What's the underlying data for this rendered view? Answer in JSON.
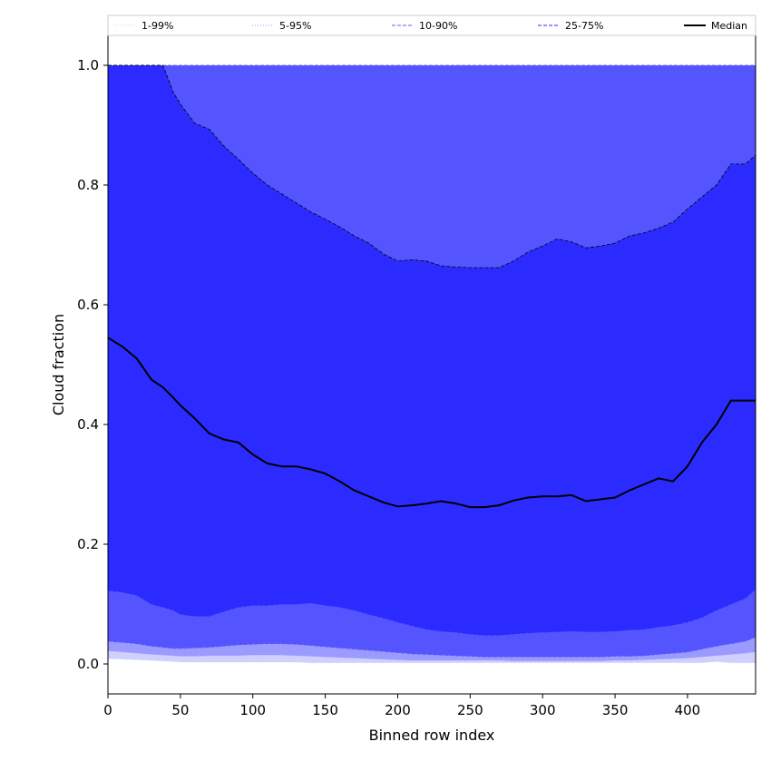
{
  "chart_data": {
    "type": "area",
    "title": "",
    "xlabel": "Binned row index",
    "ylabel": "Cloud fraction",
    "xlim": [
      0,
      447
    ],
    "ylim": [
      -0.05,
      1.05
    ],
    "xticks": [
      0,
      50,
      100,
      150,
      200,
      250,
      300,
      350,
      400
    ],
    "yticks": [
      0.0,
      0.2,
      0.4,
      0.6,
      0.8,
      1.0
    ],
    "xtick_labels": [
      "0",
      "50",
      "100",
      "150",
      "200",
      "250",
      "300",
      "350",
      "400"
    ],
    "ytick_labels": [
      "0.0",
      "0.2",
      "0.4",
      "0.6",
      "0.8",
      "1.0"
    ],
    "legend_position": "top, outside plot, single row",
    "x": [
      0,
      10,
      20,
      30,
      38,
      45,
      50,
      60,
      70,
      80,
      90,
      100,
      110,
      120,
      130,
      140,
      150,
      160,
      170,
      180,
      190,
      200,
      210,
      220,
      230,
      240,
      250,
      260,
      270,
      280,
      290,
      300,
      310,
      320,
      330,
      340,
      350,
      360,
      370,
      380,
      390,
      400,
      410,
      420,
      430,
      440,
      447
    ],
    "bands": [
      {
        "name": "1-99%",
        "color": "#d0d0ff",
        "line_style": "dotted",
        "lower": [
          0.009,
          0.008,
          0.007,
          0.006,
          0.005,
          0.004,
          0.003,
          0.003,
          0.003,
          0.003,
          0.003,
          0.003,
          0.003,
          0.003,
          0.003,
          0.002,
          0.002,
          0.002,
          0.002,
          0.002,
          0.002,
          0.002,
          0.002,
          0.002,
          0.002,
          0.002,
          0.002,
          0.002,
          0.002,
          0.002,
          0.002,
          0.002,
          0.002,
          0.002,
          0.002,
          0.002,
          0.002,
          0.002,
          0.002,
          0.002,
          0.002,
          0.002,
          0.002,
          0.004,
          0.002,
          0.002,
          0.002
        ],
        "upper": [
          1.0,
          1.0,
          1.0,
          1.0,
          1.0,
          1.0,
          1.0,
          1.0,
          1.0,
          1.0,
          1.0,
          1.0,
          1.0,
          1.0,
          1.0,
          1.0,
          1.0,
          1.0,
          1.0,
          1.0,
          1.0,
          1.0,
          1.0,
          1.0,
          1.0,
          1.0,
          1.0,
          1.0,
          1.0,
          1.0,
          1.0,
          1.0,
          1.0,
          1.0,
          1.0,
          1.0,
          1.0,
          1.0,
          1.0,
          1.0,
          1.0,
          1.0,
          1.0,
          1.0,
          1.0,
          1.0,
          1.0
        ]
      },
      {
        "name": "5-95%",
        "color": "#9a9aff",
        "line_style": "dotted",
        "lower": [
          0.022,
          0.02,
          0.018,
          0.016,
          0.015,
          0.014,
          0.013,
          0.013,
          0.014,
          0.014,
          0.014,
          0.015,
          0.015,
          0.015,
          0.014,
          0.013,
          0.012,
          0.011,
          0.01,
          0.009,
          0.008,
          0.007,
          0.006,
          0.006,
          0.006,
          0.006,
          0.006,
          0.006,
          0.006,
          0.005,
          0.005,
          0.005,
          0.005,
          0.005,
          0.005,
          0.005,
          0.006,
          0.006,
          0.007,
          0.008,
          0.009,
          0.01,
          0.012,
          0.014,
          0.016,
          0.018,
          0.02
        ],
        "upper": [
          1.0,
          1.0,
          1.0,
          1.0,
          1.0,
          1.0,
          1.0,
          1.0,
          1.0,
          1.0,
          1.0,
          1.0,
          1.0,
          1.0,
          1.0,
          1.0,
          1.0,
          1.0,
          1.0,
          1.0,
          1.0,
          1.0,
          1.0,
          1.0,
          1.0,
          1.0,
          1.0,
          1.0,
          1.0,
          1.0,
          1.0,
          1.0,
          1.0,
          1.0,
          1.0,
          1.0,
          1.0,
          1.0,
          1.0,
          1.0,
          1.0,
          1.0,
          1.0,
          1.0,
          1.0,
          1.0,
          1.0
        ]
      },
      {
        "name": "10-90%",
        "color": "#5555ff",
        "line_style": "dashed",
        "lower": [
          0.038,
          0.036,
          0.034,
          0.03,
          0.028,
          0.026,
          0.026,
          0.027,
          0.028,
          0.03,
          0.032,
          0.033,
          0.034,
          0.034,
          0.033,
          0.031,
          0.029,
          0.027,
          0.025,
          0.023,
          0.021,
          0.019,
          0.017,
          0.016,
          0.015,
          0.014,
          0.013,
          0.012,
          0.012,
          0.012,
          0.012,
          0.012,
          0.012,
          0.012,
          0.012,
          0.012,
          0.013,
          0.013,
          0.014,
          0.016,
          0.018,
          0.02,
          0.025,
          0.03,
          0.034,
          0.038,
          0.045
        ],
        "upper": [
          1.0,
          1.0,
          1.0,
          1.0,
          1.0,
          1.0,
          1.0,
          1.0,
          1.0,
          1.0,
          1.0,
          1.0,
          1.0,
          1.0,
          1.0,
          1.0,
          1.0,
          1.0,
          1.0,
          1.0,
          1.0,
          1.0,
          1.0,
          1.0,
          1.0,
          1.0,
          1.0,
          1.0,
          1.0,
          1.0,
          1.0,
          1.0,
          1.0,
          1.0,
          1.0,
          1.0,
          1.0,
          1.0,
          1.0,
          1.0,
          1.0,
          1.0,
          1.0,
          1.0,
          1.0,
          1.0,
          1.0
        ]
      },
      {
        "name": "25-75%",
        "color": "#2b2bff",
        "line_style": "dashed",
        "lower": [
          0.123,
          0.12,
          0.115,
          0.1,
          0.095,
          0.09,
          0.083,
          0.08,
          0.08,
          0.088,
          0.095,
          0.098,
          0.098,
          0.1,
          0.1,
          0.102,
          0.098,
          0.095,
          0.09,
          0.083,
          0.077,
          0.07,
          0.064,
          0.058,
          0.055,
          0.053,
          0.05,
          0.048,
          0.048,
          0.05,
          0.052,
          0.053,
          0.054,
          0.055,
          0.054,
          0.054,
          0.055,
          0.057,
          0.058,
          0.062,
          0.065,
          0.07,
          0.078,
          0.09,
          0.1,
          0.11,
          0.125
        ],
        "upper": [
          1.0,
          1.0,
          1.0,
          1.0,
          1.0,
          0.955,
          0.935,
          0.903,
          0.893,
          0.865,
          0.843,
          0.82,
          0.8,
          0.785,
          0.77,
          0.755,
          0.743,
          0.73,
          0.715,
          0.703,
          0.685,
          0.673,
          0.675,
          0.673,
          0.665,
          0.663,
          0.662,
          0.662,
          0.662,
          0.673,
          0.688,
          0.698,
          0.71,
          0.705,
          0.695,
          0.698,
          0.703,
          0.715,
          0.72,
          0.728,
          0.738,
          0.76,
          0.78,
          0.8,
          0.835,
          0.835,
          0.85
        ]
      }
    ],
    "series": [
      {
        "name": "Median",
        "color": "#000000",
        "values": [
          0.545,
          0.53,
          0.51,
          0.475,
          0.462,
          0.445,
          0.432,
          0.41,
          0.385,
          0.375,
          0.37,
          0.35,
          0.335,
          0.33,
          0.33,
          0.325,
          0.318,
          0.305,
          0.29,
          0.28,
          0.27,
          0.263,
          0.265,
          0.268,
          0.272,
          0.268,
          0.262,
          0.262,
          0.265,
          0.273,
          0.278,
          0.28,
          0.28,
          0.282,
          0.272,
          0.275,
          0.278,
          0.29,
          0.3,
          0.31,
          0.305,
          0.33,
          0.37,
          0.4,
          0.44,
          0.44,
          0.44
        ]
      }
    ]
  }
}
